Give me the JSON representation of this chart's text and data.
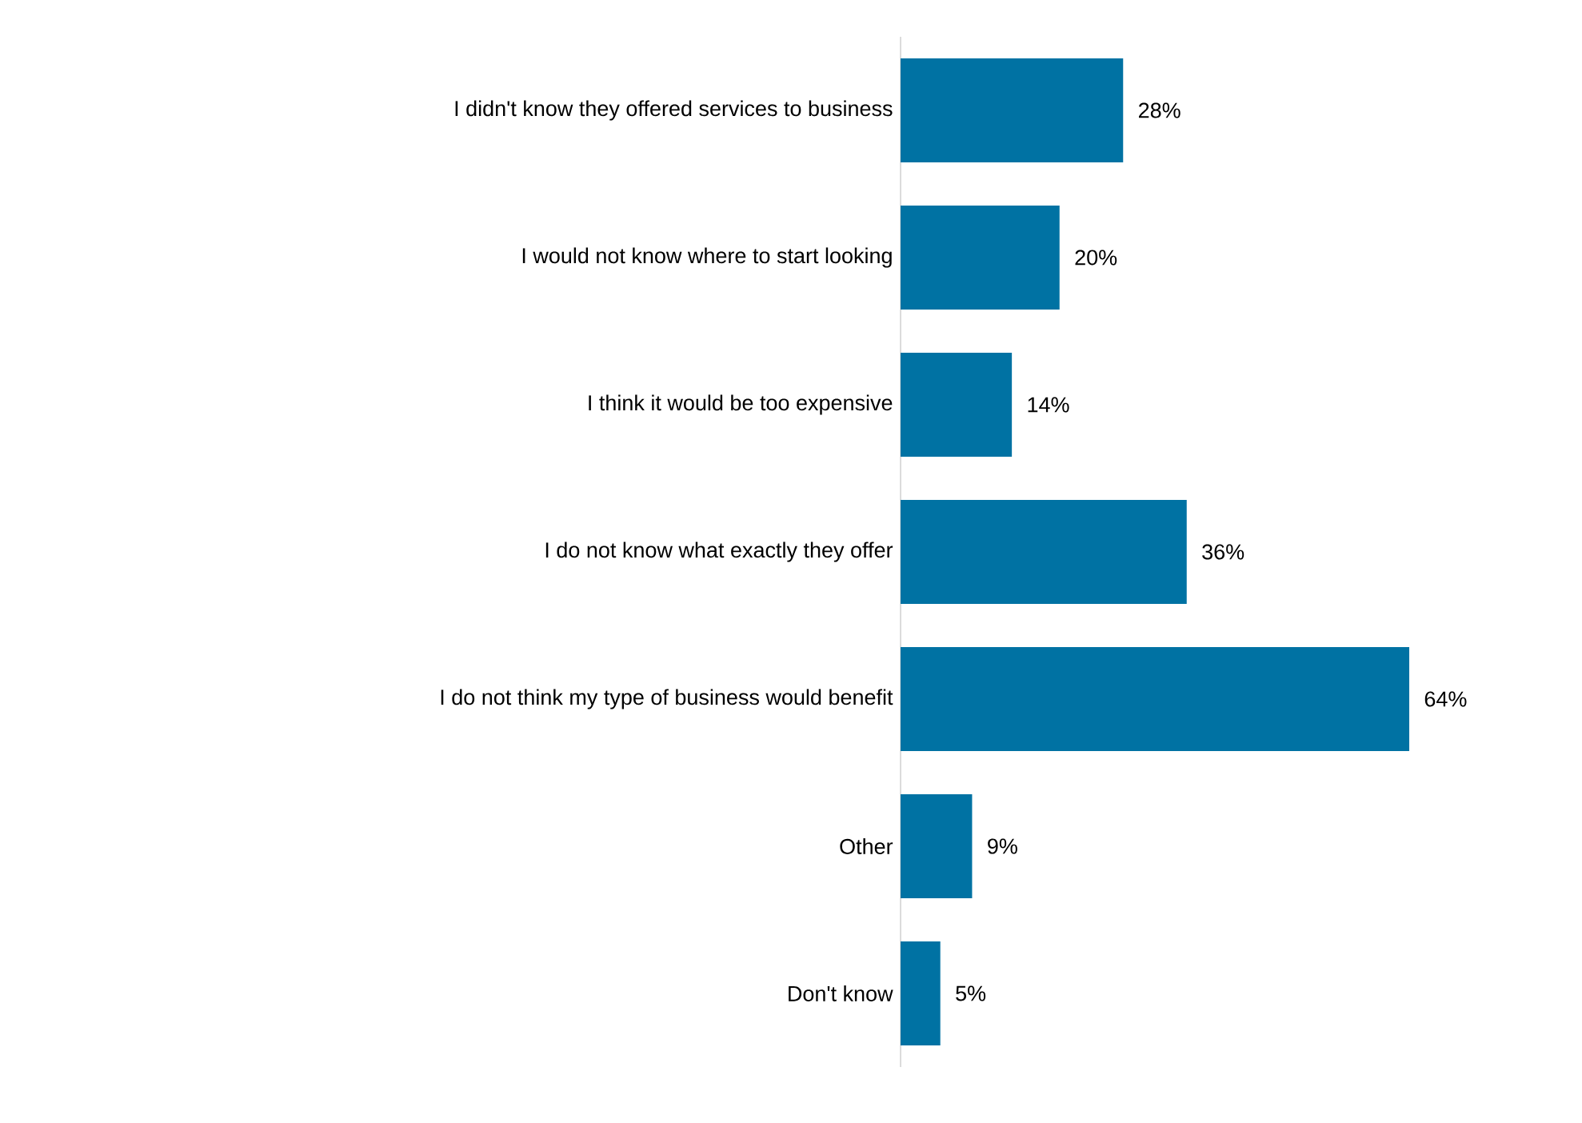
{
  "chart_data": {
    "type": "bar",
    "orientation": "horizontal",
    "categories": [
      "I didn't know they offered services to business",
      "I would not know where to start looking",
      "I think it would be too expensive",
      "I do not know what exactly they offer",
      "I do not think my type of business would benefit",
      "Other",
      "Don't know"
    ],
    "values": [
      28,
      20,
      14,
      36,
      64,
      9,
      5
    ],
    "value_labels": [
      "28%",
      "20%",
      "14%",
      "36%",
      "64%",
      "9%",
      "5%"
    ],
    "color": "#0072a3"
  }
}
